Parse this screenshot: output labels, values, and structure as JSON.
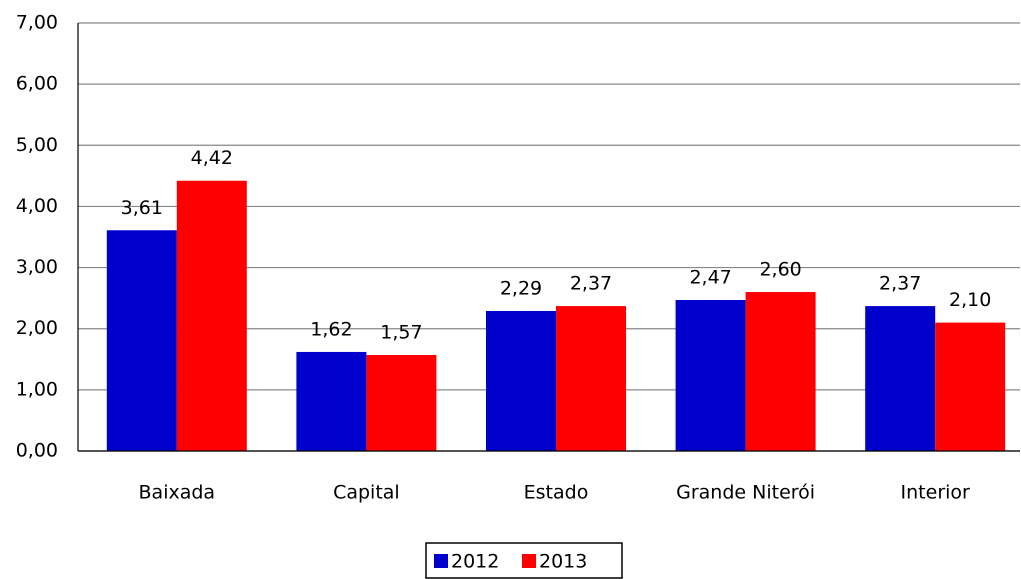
{
  "chart_data": {
    "type": "bar",
    "categories": [
      "Baixada",
      "Capital",
      "Estado",
      "Grande Niterói",
      "Interior"
    ],
    "series": [
      {
        "name": "2012",
        "color": "#0000cc",
        "values": [
          3.61,
          1.62,
          2.29,
          2.47,
          2.37
        ],
        "value_labels": [
          "3,61",
          "1,62",
          "2,29",
          "2,47",
          "2,37"
        ]
      },
      {
        "name": "2013",
        "color": "#ff0000",
        "values": [
          4.42,
          1.57,
          2.37,
          2.6,
          2.1
        ],
        "value_labels": [
          "4,42",
          "1,57",
          "2,37",
          "2,60",
          "2,10"
        ]
      }
    ],
    "ylim": [
      0,
      7
    ],
    "yticks": [
      {
        "value": 0,
        "label": "0,00"
      },
      {
        "value": 1,
        "label": "1,00"
      },
      {
        "value": 2,
        "label": "2,00"
      },
      {
        "value": 3,
        "label": "3,00"
      },
      {
        "value": 4,
        "label": "4,00"
      },
      {
        "value": 5,
        "label": "5,00"
      },
      {
        "value": 6,
        "label": "6,00"
      },
      {
        "value": 7,
        "label": "7,00"
      }
    ],
    "grid": true,
    "legend": "bottom"
  }
}
